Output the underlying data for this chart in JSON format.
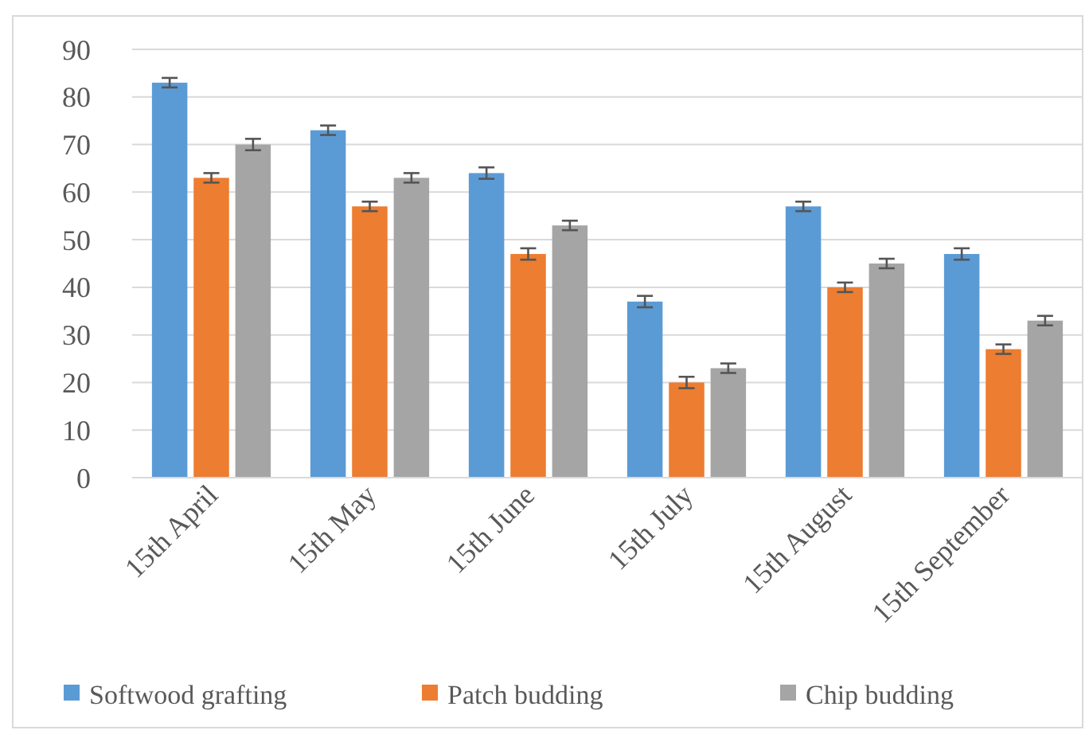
{
  "chart_data": {
    "type": "bar",
    "categories": [
      "15th April",
      "15th May",
      "15th June",
      "15th July",
      "15th August",
      "15th September"
    ],
    "series": [
      {
        "name": "Softwood grafting",
        "color": "#5b9bd5",
        "values": [
          83,
          73,
          64,
          37,
          57,
          47
        ],
        "errors": [
          1,
          1,
          1.2,
          1.2,
          1,
          1.2
        ]
      },
      {
        "name": "Patch budding",
        "color": "#ed7d31",
        "values": [
          63,
          57,
          47,
          20,
          40,
          27
        ],
        "errors": [
          1,
          1,
          1.2,
          1.2,
          1,
          1
        ]
      },
      {
        "name": "Chip budding",
        "color": "#a5a5a5",
        "values": [
          70,
          63,
          53,
          23,
          45,
          33
        ],
        "errors": [
          1.2,
          1,
          1,
          1,
          1,
          1
        ]
      }
    ],
    "ylim": [
      0,
      90
    ],
    "yticks": [
      0,
      10,
      20,
      30,
      40,
      50,
      60,
      70,
      80,
      90
    ],
    "grid": "y",
    "legend": "bottom"
  }
}
